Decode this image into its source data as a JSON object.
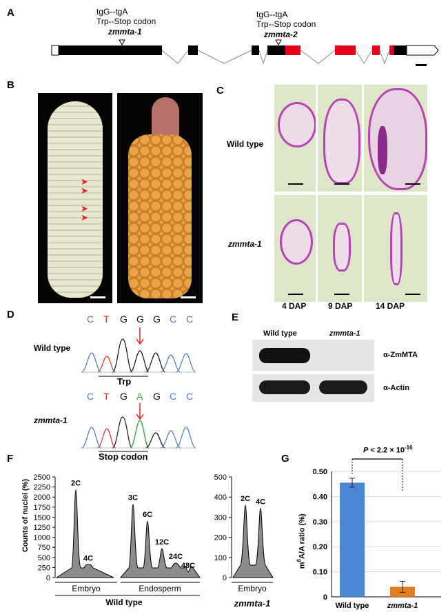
{
  "panels": {
    "A": "A",
    "B": "B",
    "C": "C",
    "D": "D",
    "E": "E",
    "F": "F",
    "G": "G"
  },
  "panel_a": {
    "mut1": {
      "change": "tgG--tgA",
      "effect": "Trp--Stop codon",
      "name": "zmmta-1"
    },
    "mut2": {
      "change": "tgG--tgA",
      "effect": "Trp--Stop codon",
      "name": "zmmta-2"
    }
  },
  "panel_c": {
    "row_labels": [
      "Wild type",
      "zmmta-1"
    ],
    "col_labels": [
      "4 DAP",
      "9 DAP",
      "14 DAP"
    ]
  },
  "panel_d": {
    "wt_label": "Wild type",
    "wt_seq": [
      "C",
      "T",
      "G",
      "G",
      "G",
      "C",
      "C"
    ],
    "wt_codon": "Trp",
    "mut_label": "zmmta-1",
    "mut_seq": [
      "C",
      "T",
      "G",
      "A",
      "G",
      "C",
      "C"
    ],
    "mut_codon": "Stop codon",
    "base_colors": {
      "C": "#4a78c8",
      "T": "#d8352a",
      "G": "#111111",
      "A": "#3aa04a"
    }
  },
  "panel_e": {
    "col_labels": [
      "Wild type",
      "zmmta-1"
    ],
    "row_labels": [
      "α-ZmMTA",
      "α-Actin"
    ]
  },
  "chart_data": [
    {
      "type": "area",
      "ylabel": "Counts of nuclei (%)",
      "y_ticks": [
        "0",
        "250",
        "500",
        "750",
        "1000",
        "1250",
        "1500",
        "1750",
        "2000",
        "2250",
        "2500"
      ],
      "panels": [
        {
          "group": "Embryo",
          "peaks": [
            {
              "label": "2C",
              "value": 2180
            },
            {
              "label": "4C",
              "value": 320
            }
          ]
        },
        {
          "group": "Endosperm",
          "peaks": [
            {
              "label": "3C",
              "value": 1820
            },
            {
              "label": "6C",
              "value": 1400
            },
            {
              "label": "12C",
              "value": 720
            },
            {
              "label": "24C",
              "value": 360
            },
            {
              "label": "48C",
              "value": 140
            }
          ]
        }
      ],
      "group_label": "Wild type"
    },
    {
      "type": "area",
      "y_ticks": [
        "0",
        "100",
        "200",
        "300",
        "400",
        "500"
      ],
      "panels": [
        {
          "group": "Embryo",
          "peaks": [
            {
              "label": "2C",
              "value": 360
            },
            {
              "label": "4C",
              "value": 345
            }
          ]
        }
      ],
      "group_label": "zmmta-1"
    },
    {
      "type": "bar",
      "categories": [
        "Wild type",
        "zmmta-1"
      ],
      "values": [
        0.455,
        0.04
      ],
      "errors": [
        0.018,
        0.022
      ],
      "colors": [
        "#4a86d4",
        "#e07c1e"
      ],
      "ylabel_main": "m6A/A ratio (%)",
      "ylim": [
        0,
        0.5
      ],
      "y_ticks": [
        "0",
        "0.10",
        "0.20",
        "0.30",
        "0.40",
        "0.50"
      ],
      "annotation": "P < 2.2 × 10-16",
      "grid": true
    }
  ]
}
